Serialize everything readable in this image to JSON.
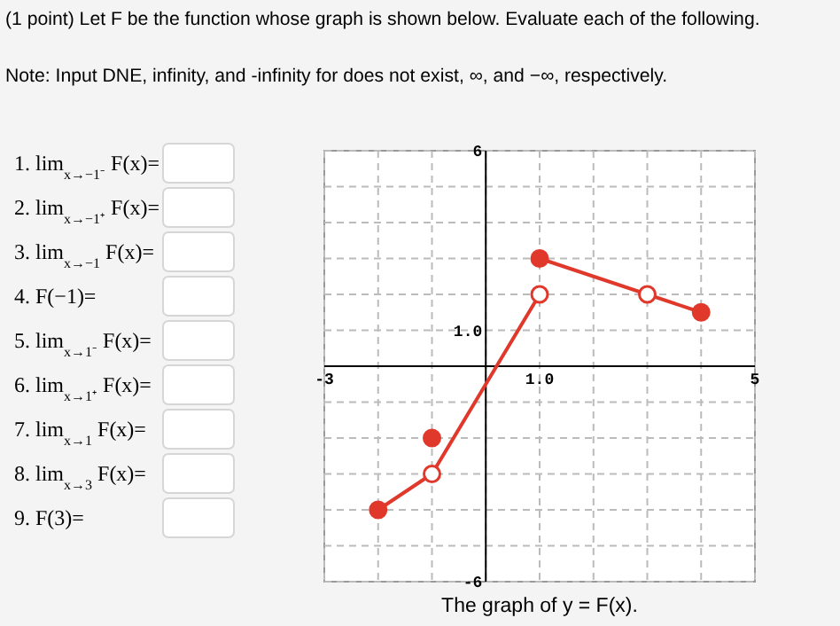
{
  "chart_data": {
    "type": "line",
    "title": "(1 point) Let F be the function whose graph is shown below. Evaluate each of the following.",
    "subtitle": "Note: Input DNE, infinity, and -infinity for does not exist, ∞, and −∞, respectively.",
    "xlabel": "The graph of y = F(x).",
    "annotations": [
      "1. lim$_{x→−1⁻}$ F(x)=",
      "2. lim$_{x→−1⁺}$ F(x)=",
      "3. lim$_{x→−1}$ F(x)=",
      "4. F(−1)=",
      "5. lim$_{x→1⁻}$ F(x)=",
      "6. lim$_{x→1⁺}$ F(x)=",
      "7. lim$_{x→1}$ F(x)=",
      "8. lim$_{x→3}$ F(x)=",
      "9. F(3)="
    ],
    "xlim": [
      -3,
      5
    ],
    "xticks": [
      -3,
      {
        "value": -2,
        "label": null
      },
      {
        "value": -1,
        "label": null
      },
      {
        "value": 0,
        "label": null
      },
      {
        "value": 1,
        "label": "1.0"
      },
      {
        "value": 2,
        "label": null
      },
      {
        "value": 3,
        "label": null
      },
      {
        "value": 4,
        "label": null
      },
      5
    ],
    "ylim": [
      -6,
      6
    ],
    "yticks": [
      -6,
      {
        "value": -5,
        "label": null
      },
      {
        "value": -4,
        "label": null
      },
      {
        "value": -3,
        "label": null
      },
      {
        "value": -2,
        "label": null
      },
      {
        "value": -1,
        "label": null
      },
      {
        "value": 0,
        "label": null
      },
      {
        "value": 1,
        "label": "1.0"
      },
      {
        "value": 2,
        "label": null
      },
      {
        "value": 3,
        "label": null
      },
      {
        "value": 4,
        "label": null
      },
      {
        "value": 5,
        "label": null
      },
      6
    ],
    "grid": true,
    "series": [
      {
        "color": "#e0392b",
        "x": [
          -2,
          -1
        ],
        "values": [
          -4,
          -3
        ],
        "marker": "none",
        "line_style": "solid"
      },
      {
        "color": "#e0392b",
        "x": [
          -1,
          1
        ],
        "values": [
          -3,
          2
        ],
        "marker": "none",
        "line_style": "solid"
      },
      {
        "color": "#e0392b",
        "x": [
          1,
          4
        ],
        "values": [
          3,
          1.5
        ],
        "marker": "none",
        "line_style": "solid"
      },
      {
        "type": "scatter",
        "color": "#e0392b",
        "x": [
          -2,
          -1,
          1,
          4
        ],
        "values": [
          -4,
          -2,
          3,
          1.5
        ],
        "marker": "circle"
      },
      {
        "type": "scatter",
        "color": "#ffffff",
        "x": [
          -1,
          1,
          3
        ],
        "values": [
          -3,
          2,
          2
        ],
        "marker": "circle"
      }
    ]
  }
}
